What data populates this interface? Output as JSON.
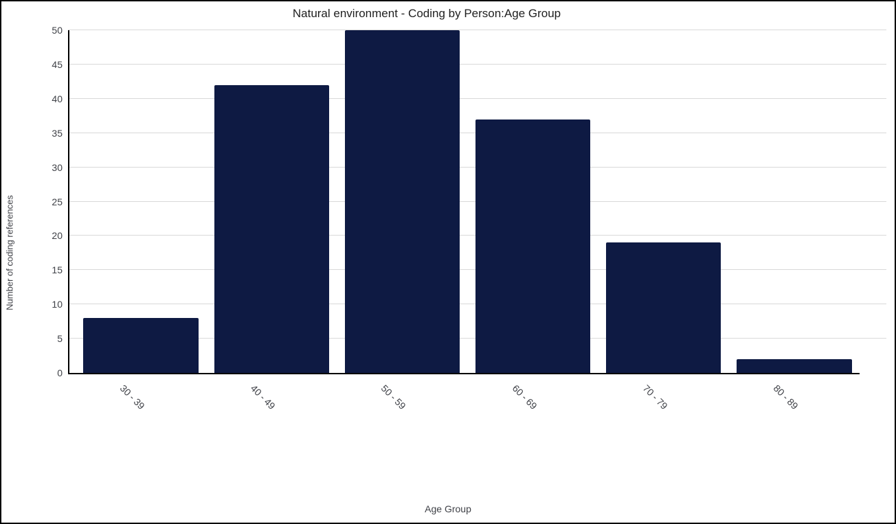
{
  "chart_data": {
    "type": "bar",
    "title": "Natural environment - Coding by Person:Age Group",
    "categories": [
      "30 - 39",
      "40 - 49",
      "50 - 59",
      "60 - 69",
      "70 - 79",
      "80 - 89"
    ],
    "values": [
      8,
      42,
      50,
      37,
      19,
      2
    ],
    "xlabel": "Age Group",
    "ylabel": "Number of coding references",
    "ylim": [
      0,
      50
    ],
    "ytick_step": 5,
    "yticks": [
      0,
      5,
      10,
      15,
      20,
      25,
      30,
      35,
      40,
      45,
      50
    ],
    "grid": "horizontal-only",
    "legend": "none",
    "colors": {
      "bar": "#0e1a43",
      "gridline": "#d9d9d9",
      "axis_line": "#000000",
      "tick_text": "#3f4147",
      "title_text": "#1e1e1e",
      "background": "#ffffff",
      "frame_border": "#000000"
    }
  }
}
